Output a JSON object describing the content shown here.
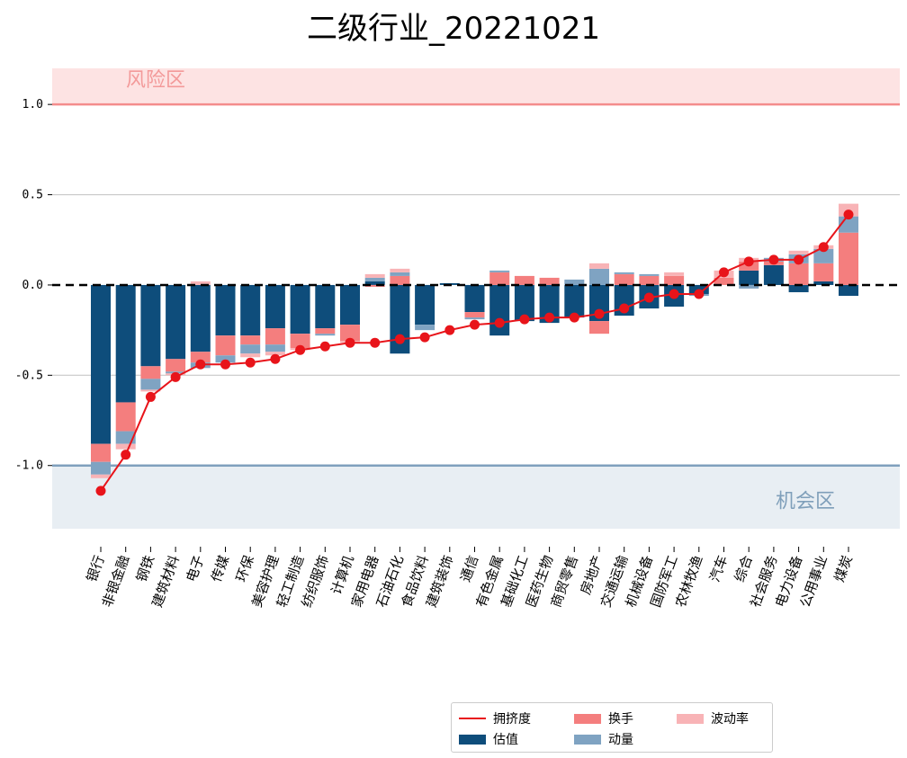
{
  "chart_data": {
    "type": "bar",
    "title": "二级行业_20221021",
    "ylim": [
      -1.35,
      1.2
    ],
    "yticks": [
      -1.0,
      -0.5,
      0.0,
      0.5,
      1.0
    ],
    "ytick_labels": [
      "-1.0",
      "-0.5",
      "0.0",
      "0.5",
      "1.0"
    ],
    "grid": "horizontal",
    "zones": {
      "risk": {
        "label": "风险区",
        "from": 1.0,
        "to": 1.2,
        "line": 1.0,
        "color": "#fde3e3",
        "line_color": "#f48c8c",
        "text_color": "#f39a9a"
      },
      "opportunity": {
        "label": "机会区",
        "from": -1.35,
        "to": -1.0,
        "line": -1.0,
        "color": "#e8eef3",
        "line_color": "#7fa0bd",
        "text_color": "#7f9fba"
      }
    },
    "categories": [
      "银行",
      "非银金融",
      "钢铁",
      "建筑材料",
      "电子",
      "传媒",
      "环保",
      "美容护理",
      "轻工制造",
      "纺织服饰",
      "计算机",
      "家用电器",
      "石油石化",
      "食品饮料",
      "建筑装饰",
      "通信",
      "有色金属",
      "基础化工",
      "医药生物",
      "商贸零售",
      "房地产",
      "交通运输",
      "机械设备",
      "国防军工",
      "农林牧渔",
      "汽车",
      "综合",
      "社会服务",
      "电力设备",
      "公用事业",
      "煤炭"
    ],
    "series": [
      {
        "name": "估值",
        "color": "#0e4d7b",
        "values": [
          -0.88,
          -0.65,
          -0.45,
          -0.41,
          -0.37,
          -0.28,
          -0.28,
          -0.24,
          -0.27,
          -0.24,
          -0.22,
          0.02,
          -0.38,
          -0.22,
          0.01,
          -0.15,
          -0.28,
          -0.2,
          -0.21,
          -0.18,
          -0.2,
          -0.17,
          -0.13,
          -0.12,
          -0.05,
          0.0,
          0.08,
          0.11,
          -0.04,
          0.02,
          -0.06
        ]
      },
      {
        "name": "换手",
        "color": "#f47e7e",
        "values": [
          -0.1,
          -0.16,
          -0.07,
          -0.07,
          -0.06,
          -0.11,
          -0.05,
          -0.09,
          -0.08,
          -0.03,
          -0.09,
          -0.01,
          0.05,
          0.0,
          0.0,
          -0.03,
          0.07,
          0.05,
          0.04,
          0.0,
          -0.07,
          0.06,
          0.05,
          0.05,
          0.0,
          0.04,
          0.05,
          0.02,
          0.12,
          0.1,
          0.29
        ]
      },
      {
        "name": "动量",
        "color": "#7fa3c2",
        "values": [
          -0.07,
          -0.07,
          -0.06,
          -0.01,
          -0.03,
          -0.04,
          -0.05,
          -0.04,
          0.0,
          -0.01,
          0.0,
          0.02,
          0.02,
          -0.03,
          0.0,
          -0.01,
          0.01,
          0.0,
          0.0,
          0.03,
          0.09,
          0.01,
          0.01,
          0.0,
          -0.01,
          0.0,
          -0.02,
          0.02,
          0.05,
          0.08,
          0.09
        ]
      },
      {
        "name": "波动率",
        "color": "#f8b3b6",
        "values": [
          -0.02,
          -0.03,
          -0.01,
          -0.01,
          0.02,
          0.0,
          -0.02,
          -0.02,
          -0.01,
          0.0,
          -0.01,
          0.02,
          0.02,
          0.0,
          0.0,
          0.0,
          0.0,
          0.0,
          0.0,
          0.0,
          0.03,
          0.0,
          0.0,
          0.02,
          0.0,
          0.04,
          0.02,
          0.0,
          0.02,
          0.02,
          0.07
        ]
      }
    ],
    "line": {
      "name": "拥挤度",
      "color": "#e8141a",
      "values": [
        -1.14,
        -0.94,
        -0.62,
        -0.51,
        -0.44,
        -0.44,
        -0.43,
        -0.41,
        -0.36,
        -0.34,
        -0.32,
        -0.32,
        -0.3,
        -0.29,
        -0.25,
        -0.22,
        -0.21,
        -0.19,
        -0.18,
        -0.18,
        -0.16,
        -0.13,
        -0.07,
        -0.05,
        -0.05,
        0.07,
        0.13,
        0.14,
        0.14,
        0.21,
        0.39
      ]
    },
    "legend": {
      "placement": "bottom-right",
      "ncol": 3
    }
  },
  "legend_items": {
    "line": "拥挤度",
    "valuation": "估值",
    "turnover": "换手",
    "momentum": "动量",
    "volatility": "波动率"
  }
}
